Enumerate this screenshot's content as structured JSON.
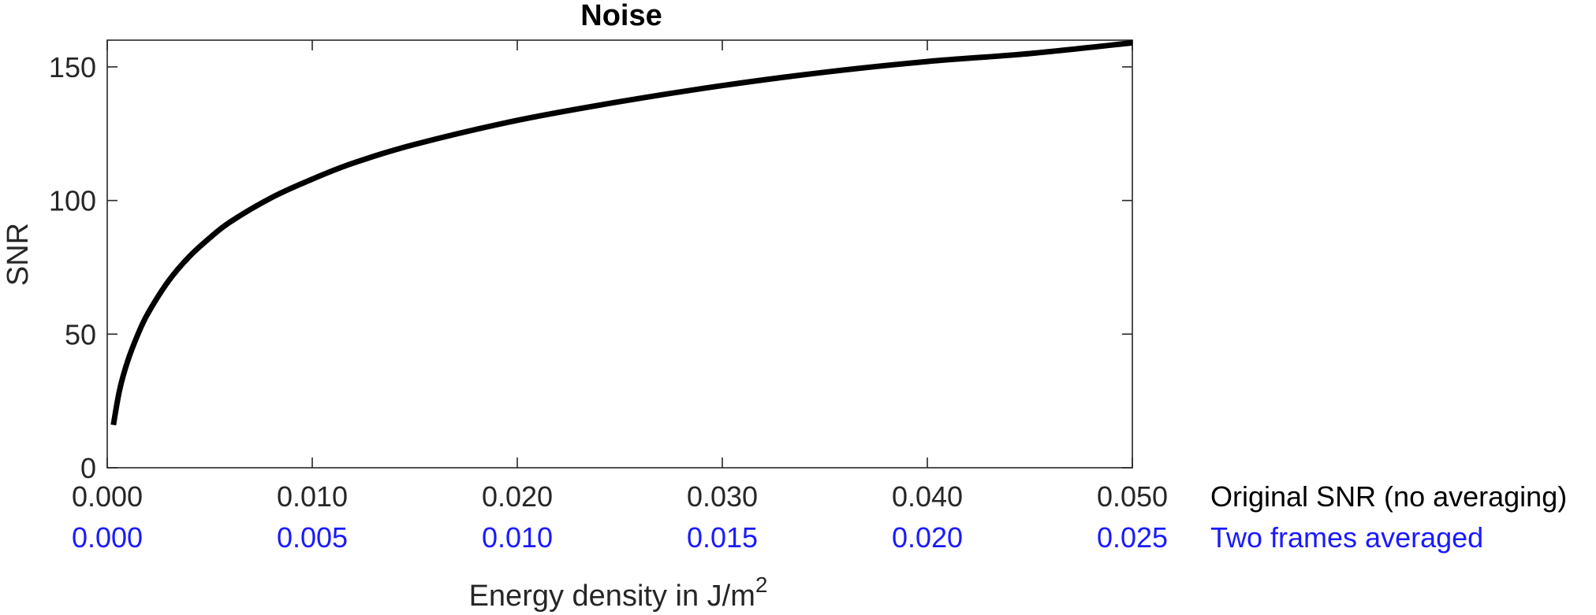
{
  "chart_data": {
    "type": "line",
    "title": "Noise",
    "ylabel": "SNR",
    "xlabel": "Energy density in J/m",
    "xlabel_superscript": "2",
    "xlim": [
      0,
      0.05
    ],
    "ylim": [
      0,
      160
    ],
    "grid": false,
    "x_ticks": [
      "0.000",
      "0.010",
      "0.020",
      "0.030",
      "0.040",
      "0.050"
    ],
    "x_ticks_secondary": [
      "0.000",
      "0.005",
      "0.010",
      "0.015",
      "0.020",
      "0.025"
    ],
    "y_ticks": [
      "0",
      "50",
      "100",
      "150"
    ],
    "row_labels": {
      "primary": "Original SNR (no averaging)",
      "secondary": "Two frames averaged"
    },
    "colors": {
      "line": "#000000",
      "axis": "#262626",
      "secondary": "#1a1aff"
    },
    "series": [
      {
        "x": [
          0.0003,
          0.0006,
          0.001,
          0.0015,
          0.002,
          0.003,
          0.004,
          0.005,
          0.006,
          0.008,
          0.01,
          0.012,
          0.015,
          0.02,
          0.025,
          0.03,
          0.035,
          0.04,
          0.045,
          0.05
        ],
        "values": [
          16,
          29,
          40,
          50,
          58,
          70,
          79,
          86,
          92,
          101,
          108,
          114,
          121,
          130,
          137,
          143,
          148,
          152,
          155,
          159
        ]
      }
    ]
  }
}
